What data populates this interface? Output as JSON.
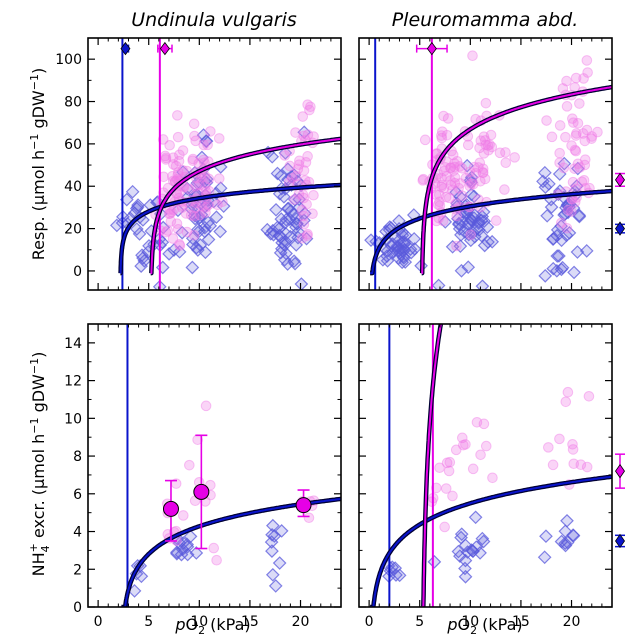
{
  "colors": {
    "undinula_series": "#0a14cc",
    "pleuromamma_series": "#e600e6",
    "undinula_marker": "#5a5adc",
    "pleuromamma_marker": "#f07ae6",
    "curve_edge": "#000033"
  },
  "labels": {
    "title_left": "Undinula vulgaris",
    "title_right": "Pleuromamma abd.",
    "ylabel_top_main": "Resp. (μmol h",
    "ylabel_top_sup1": "−1",
    "ylabel_top_mid": " gDW",
    "ylabel_top_sup2": "−1",
    "ylabel_top_end": ")",
    "ylabel_bot_nh": "NH",
    "ylabel_bot_sub": "4",
    "ylabel_bot_sup": "+",
    "ylabel_bot_main": " excr. (μmol h",
    "ylabel_bot_sup1": "−1",
    "ylabel_bot_mid": " gDW",
    "ylabel_bot_sup2": "−1",
    "ylabel_bot_end": ")",
    "xlabel_p": "p",
    "xlabel_o": "O",
    "xlabel_sub": "2",
    "xlabel_unit": " (kPa)"
  },
  "axes": {
    "x_ticks": [
      "0",
      "5",
      "10",
      "15",
      "20"
    ],
    "y_top_ticks": [
      "0",
      "20",
      "40",
      "60",
      "80",
      "100"
    ],
    "y_bot_ticks": [
      "0",
      "2",
      "4",
      "6",
      "8",
      "10",
      "12",
      "14"
    ]
  },
  "chart_data": [
    {
      "type": "scatter",
      "panel": "top-left",
      "title": "Undinula vulgaris",
      "xlim": [
        -1,
        24
      ],
      "ylim": [
        -9,
        110
      ],
      "vlines": {
        "undinula": 2.4,
        "pleuromamma": 6.1
      },
      "curves": [
        {
          "series": "undinula",
          "pc": 2.4,
          "a": 12,
          "k": 6.1,
          "p0": 2.2,
          "clip": -1
        },
        {
          "series": "pleuromamma",
          "pc": 5.4,
          "a": 11.5,
          "k": 11.2,
          "p0": 5.2,
          "clip": -1
        }
      ],
      "ref_points": [
        {
          "series": "undinula",
          "x": 2.7,
          "y": 105,
          "xerr": 0.3
        },
        {
          "series": "pleuromamma",
          "x": 6.6,
          "y": 105,
          "xerr": 0.7
        }
      ],
      "clusters": [
        {
          "series": "undinula",
          "xc": 4.8,
          "xs": 1.3,
          "yc": 20,
          "ys": 11,
          "n": 35
        },
        {
          "series": "undinula",
          "xc": 9.8,
          "xs": 1.0,
          "yc": 30,
          "ys": 15,
          "n": 55
        },
        {
          "series": "undinula",
          "xc": 18.5,
          "xs": 1.1,
          "yc": 28,
          "ys": 14,
          "n": 60
        },
        {
          "series": "pleuromamma",
          "xc": 7.6,
          "xs": 0.7,
          "yc": 38,
          "ys": 13,
          "n": 55
        },
        {
          "series": "pleuromamma",
          "xc": 10.0,
          "xs": 1.1,
          "yc": 40,
          "ys": 12,
          "n": 50
        },
        {
          "series": "pleuromamma",
          "xc": 20.3,
          "xs": 0.7,
          "yc": 48,
          "ys": 18,
          "n": 40
        }
      ]
    },
    {
      "type": "scatter",
      "panel": "top-right",
      "title": "Pleuromamma abd.",
      "xlim": [
        -1,
        24
      ],
      "ylim": [
        -9,
        110
      ],
      "vlines": {
        "undinula": 0.6,
        "pleuromamma": 6.2
      },
      "curves": [
        {
          "series": "undinula",
          "pc": 0.5,
          "a": 4.2,
          "k": 8.2,
          "p0": 0.1,
          "clip": -1
        },
        {
          "series": "pleuromamma",
          "pc": 5.4,
          "a": 20.5,
          "k": 14.6,
          "p0": 5.2,
          "clip": -1
        }
      ],
      "ref_points": [
        {
          "series": "pleuromamma",
          "x": 6.2,
          "y": 105,
          "xerr": 1.5
        }
      ],
      "side_points": [
        {
          "series": "pleuromamma",
          "y": 43,
          "yerr": 3
        },
        {
          "series": "undinula",
          "y": 20,
          "yerr": 2
        }
      ],
      "clusters": [
        {
          "series": "undinula",
          "xc": 2.6,
          "xs": 1.1,
          "yc": 12,
          "ys": 6,
          "n": 45
        },
        {
          "series": "undinula",
          "xc": 9.8,
          "xs": 0.9,
          "yc": 20,
          "ys": 10,
          "n": 55
        },
        {
          "series": "undinula",
          "xc": 18.8,
          "xs": 1.2,
          "yc": 25,
          "ys": 12,
          "n": 45
        },
        {
          "series": "pleuromamma",
          "xc": 7.4,
          "xs": 0.9,
          "yc": 42,
          "ys": 12,
          "n": 60
        },
        {
          "series": "pleuromamma",
          "xc": 10.8,
          "xs": 1.3,
          "yc": 50,
          "ys": 14,
          "n": 50
        },
        {
          "series": "pleuromamma",
          "xc": 20.3,
          "xs": 1.0,
          "yc": 60,
          "ys": 18,
          "n": 55
        }
      ]
    },
    {
      "type": "scatter",
      "panel": "bottom-left",
      "xlim": [
        -1,
        24
      ],
      "ylim": [
        0,
        15
      ],
      "vlines": {
        "undinula": 2.9
      },
      "curves": [
        {
          "series": "undinula",
          "pc": 2.8,
          "a": 0.45,
          "k": 1.4,
          "p0": 2.3,
          "clip": 0
        }
      ],
      "means": [
        {
          "series": "pleuromamma",
          "x": 7.2,
          "y": 5.2,
          "lo": 3.5,
          "hi": 6.7
        },
        {
          "series": "pleuromamma",
          "x": 10.2,
          "y": 6.1,
          "lo": 3.1,
          "hi": 9.1
        },
        {
          "series": "pleuromamma",
          "x": 20.3,
          "y": 5.4,
          "lo": 4.8,
          "hi": 6.2
        }
      ],
      "clusters": [
        {
          "series": "undinula",
          "xc": 4.2,
          "xs": 0.4,
          "yc": 1.9,
          "ys": 0.3,
          "n": 5
        },
        {
          "series": "undinula",
          "xc": 8.5,
          "xs": 0.8,
          "yc": 3.3,
          "ys": 0.5,
          "n": 12
        },
        {
          "series": "undinula",
          "xc": 17.8,
          "xs": 0.5,
          "yc": 3.1,
          "ys": 1.0,
          "n": 9
        },
        {
          "series": "pleuromamma",
          "xc": 7.3,
          "xs": 0.5,
          "yc": 5.0,
          "ys": 1.4,
          "n": 10
        },
        {
          "series": "pleuromamma",
          "xc": 10.6,
          "xs": 0.9,
          "yc": 6.2,
          "ys": 2.4,
          "n": 10
        },
        {
          "series": "pleuromamma",
          "xc": 20.5,
          "xs": 0.7,
          "yc": 5.4,
          "ys": 0.5,
          "n": 6
        }
      ]
    },
    {
      "type": "scatter",
      "panel": "bottom-right",
      "xlim": [
        -1,
        24
      ],
      "ylim": [
        0,
        15
      ],
      "vlines": {
        "undinula": 2.0,
        "pleuromamma": 6.3
      },
      "curves": [
        {
          "series": "undinula",
          "pc": 0.6,
          "a": 0.72,
          "k": 1.6,
          "p0": 0.1,
          "clip": 0
        },
        {
          "series": "pleuromamma",
          "pc": 5.4,
          "a": 1.32,
          "k": 6.1,
          "p0": 5.2,
          "clip": 0
        }
      ],
      "side_points": [
        {
          "series": "pleuromamma",
          "y": 7.2,
          "yerr": 0.9
        },
        {
          "series": "undinula",
          "y": 3.5,
          "yerr": 0.3
        }
      ],
      "clusters": [
        {
          "series": "undinula",
          "xc": 2.3,
          "xs": 0.6,
          "yc": 1.9,
          "ys": 0.4,
          "n": 7
        },
        {
          "series": "undinula",
          "xc": 10.0,
          "xs": 1.3,
          "yc": 3.0,
          "ys": 0.6,
          "n": 18
        },
        {
          "series": "undinula",
          "xc": 18.5,
          "xs": 1.3,
          "yc": 3.7,
          "ys": 0.5,
          "n": 10
        },
        {
          "series": "pleuromamma",
          "xc": 7.4,
          "xs": 0.8,
          "yc": 6.5,
          "ys": 1.4,
          "n": 10
        },
        {
          "series": "pleuromamma",
          "xc": 10.3,
          "xs": 0.9,
          "yc": 8.2,
          "ys": 1.1,
          "n": 10
        },
        {
          "series": "pleuromamma",
          "xc": 19.8,
          "xs": 1.0,
          "yc": 8.2,
          "ys": 1.6,
          "n": 12
        }
      ]
    }
  ]
}
